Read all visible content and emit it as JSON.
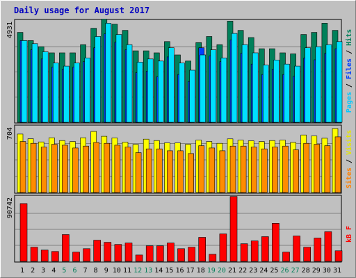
{
  "chart_data": {
    "type": "bar",
    "title": "Daily usage for August 2017",
    "categories": [
      "1",
      "2",
      "3",
      "4",
      "5",
      "6",
      "7",
      "8",
      "9",
      "10",
      "11",
      "12",
      "13",
      "14",
      "15",
      "16",
      "17",
      "18",
      "19",
      "20",
      "21",
      "22",
      "23",
      "24",
      "25",
      "26",
      "27",
      "28",
      "29",
      "30",
      "31"
    ],
    "weekend_days": [
      "5",
      "6",
      "12",
      "13",
      "19",
      "20",
      "26",
      "27"
    ],
    "panels": [
      {
        "id": "hits_files_pages",
        "ymax": 4931,
        "ymax_label": "4931",
        "legend": [
          "Pages",
          "/",
          "Files",
          "/",
          "Hits"
        ],
        "series": [
          {
            "name": "Hits",
            "color": "#00805a",
            "values": [
              4400,
              4000,
              3700,
              3400,
              3400,
              3400,
              3800,
              4600,
              5050,
              4800,
              4500,
              3500,
              3500,
              3400,
              3950,
              3300,
              3000,
              3900,
              4200,
              3800,
              4950,
              4500,
              4150,
              3600,
              3600,
              3400,
              3350,
              4300,
              4400,
              4850,
              4500
            ]
          },
          {
            "name": "Files",
            "color": "#0040ff",
            "values": [
              4000,
              3550,
              3100,
              2700,
              2600,
              2700,
              2970,
              3650,
              4330,
              3920,
              3550,
              2430,
              2500,
              2230,
              3200,
              2340,
              2000,
              3650,
              3250,
              2970,
              4030,
              3380,
              2850,
              2340,
              2610,
              2340,
              2250,
              3150,
              3060,
              3380,
              3600
            ]
          },
          {
            "name": "Pages",
            "color": "#00e0ff",
            "values": [
              4000,
              3850,
              3450,
              2900,
              2750,
              2900,
              3150,
              4200,
              4850,
              4300,
              3800,
              2950,
              3100,
              3000,
              3650,
              2900,
              2550,
              3300,
              3550,
              3150,
              4350,
              3800,
              3400,
              2800,
              3050,
              2850,
              2750,
              3650,
              3700,
              3800,
              3950
            ]
          }
        ]
      },
      {
        "id": "visits_sites",
        "ymax": 704,
        "ymax_label": "704",
        "legend": [
          "Sites",
          "/",
          "Visits"
        ],
        "series": [
          {
            "name": "Visits",
            "color": "#ffff00",
            "values": [
              630,
              580,
              545,
              590,
              560,
              550,
              590,
              658,
              606,
              588,
              542,
              518,
              575,
              560,
              535,
              535,
              520,
              565,
              550,
              530,
              578,
              565,
              558,
              550,
              560,
              565,
              540,
              620,
              610,
              585,
              690
            ]
          },
          {
            "name": "Sites",
            "color": "#ff8c00",
            "values": [
              550,
              530,
              490,
              520,
              510,
              480,
              500,
              540,
              530,
              510,
              490,
              430,
              470,
              470,
              450,
              450,
              420,
              505,
              480,
              450,
              500,
              500,
              490,
              470,
              490,
              500,
              460,
              530,
              520,
              505,
              600
            ]
          }
        ]
      },
      {
        "id": "kbytes",
        "ymax": 90742,
        "ymax_label": "90742",
        "legend": [
          "kB",
          "F"
        ],
        "series": [
          {
            "name": "kB F",
            "color": "#ff0000",
            "values": [
              82000,
              20000,
              16000,
              14000,
              38000,
              13000,
              18000,
              30000,
              27000,
              24000,
              26000,
              9000,
              22000,
              22000,
              26000,
              18000,
              20000,
              34000,
              10000,
              39000,
              92000,
              25000,
              29000,
              35000,
              54000,
              13000,
              36000,
              20000,
              33000,
              42000,
              15000
            ]
          }
        ]
      }
    ]
  }
}
